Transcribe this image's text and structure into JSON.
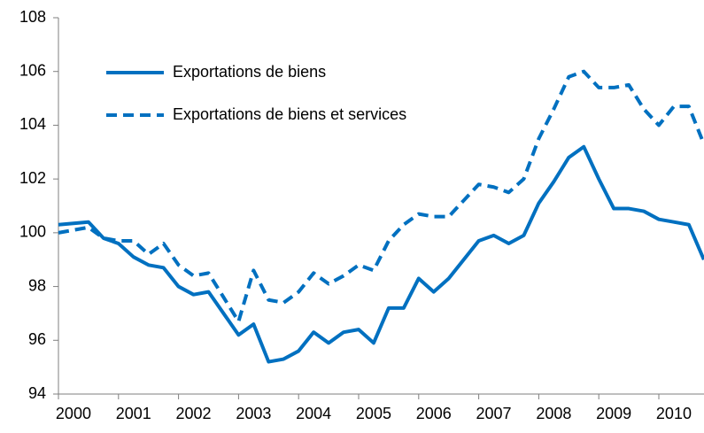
{
  "chart_data": {
    "type": "line",
    "categories": [
      null,
      "2000",
      null,
      null,
      null,
      "2001",
      null,
      null,
      null,
      "2002",
      null,
      null,
      null,
      "2003",
      null,
      null,
      null,
      "2004",
      null,
      null,
      null,
      "2005",
      null,
      null,
      null,
      "2006",
      null,
      null,
      null,
      "2007",
      null,
      null,
      null,
      "2008",
      null,
      null,
      null,
      "2009",
      null,
      null,
      null,
      "2010",
      null,
      null
    ],
    "series": [
      {
        "name": "Exportations de biens",
        "color": "#0070c0",
        "dash": false,
        "values": [
          100.3,
          100.35,
          100.4,
          99.8,
          99.6,
          99.1,
          98.8,
          98.7,
          98.0,
          97.7,
          97.8,
          97.0,
          96.2,
          96.6,
          95.2,
          95.3,
          95.6,
          96.3,
          95.9,
          96.3,
          96.4,
          95.9,
          97.2,
          97.2,
          98.3,
          97.8,
          98.3,
          99.0,
          99.7,
          99.9,
          99.6,
          99.9,
          101.1,
          101.9,
          102.8,
          103.2,
          102.0,
          100.9,
          100.9,
          100.8,
          100.5,
          100.4,
          100.3,
          99.0
        ]
      },
      {
        "name": "Exportations de biens et services",
        "color": "#0070c0",
        "dash": true,
        "values": [
          100.0,
          100.1,
          100.2,
          99.8,
          99.7,
          99.7,
          99.2,
          99.6,
          98.8,
          98.4,
          98.5,
          97.6,
          96.7,
          98.6,
          97.5,
          97.4,
          97.8,
          98.5,
          98.1,
          98.4,
          98.8,
          98.6,
          99.7,
          100.3,
          100.7,
          100.6,
          100.6,
          101.2,
          101.8,
          101.7,
          101.5,
          102.0,
          103.5,
          104.6,
          105.8,
          106.0,
          105.4,
          105.4,
          105.5,
          104.6,
          104.0,
          104.7,
          104.7,
          103.3
        ]
      }
    ],
    "ylim": [
      94,
      108
    ],
    "yticks": [
      94,
      96,
      98,
      100,
      102,
      104,
      106,
      108
    ],
    "grid": false,
    "legend": "upper left"
  }
}
